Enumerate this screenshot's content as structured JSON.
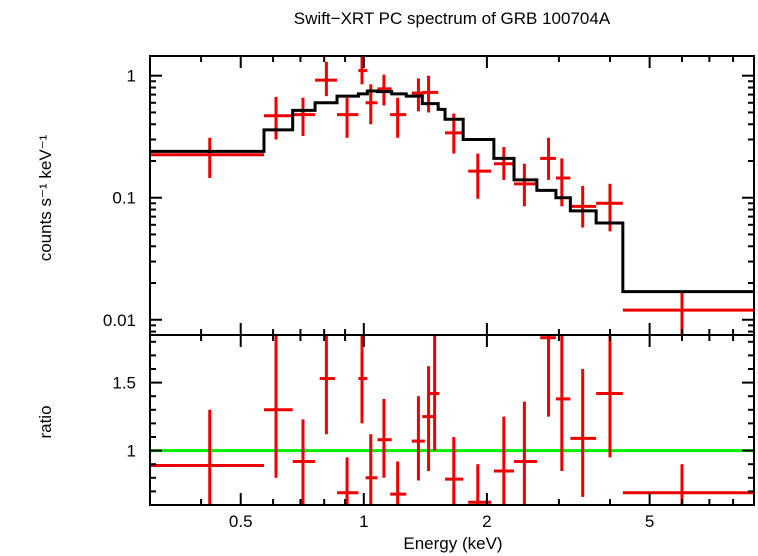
{
  "chart_data": {
    "type": "scatter",
    "title": "Swift−XRT PC spectrum of GRB 100704A",
    "xlabel": "Energy (keV)",
    "xscale": "log",
    "xlim": [
      0.3,
      9.0
    ],
    "x_tick_labels": [
      "0.5",
      "1",
      "2",
      "5"
    ],
    "x_ticks": [
      0.5,
      1,
      2,
      5
    ],
    "panels": [
      {
        "name": "spectrum",
        "ylabel": "counts s⁻¹ keV⁻¹",
        "yscale": "log",
        "ylim": [
          0.0075,
          1.45
        ],
        "y_tick_labels": [
          "1",
          "0.1",
          "0.01"
        ],
        "y_ticks": [
          1,
          0.1,
          0.01
        ],
        "data": [
          {
            "x": 0.42,
            "xlo": 0.3,
            "xhi": 0.57,
            "y": 0.225,
            "ylo": 0.145,
            "yhi": 0.31
          },
          {
            "x": 0.61,
            "xlo": 0.57,
            "xhi": 0.67,
            "y": 0.47,
            "ylo": 0.3,
            "yhi": 0.67
          },
          {
            "x": 0.71,
            "xlo": 0.67,
            "xhi": 0.76,
            "y": 0.48,
            "ylo": 0.32,
            "yhi": 0.66
          },
          {
            "x": 0.81,
            "xlo": 0.76,
            "xhi": 0.86,
            "y": 0.92,
            "ylo": 0.68,
            "yhi": 1.3
          },
          {
            "x": 0.91,
            "xlo": 0.86,
            "xhi": 0.97,
            "y": 0.48,
            "ylo": 0.31,
            "yhi": 0.66
          },
          {
            "x": 0.99,
            "xlo": 0.97,
            "xhi": 1.02,
            "y": 1.1,
            "ylo": 0.85,
            "yhi": 1.45
          },
          {
            "x": 1.04,
            "xlo": 1.01,
            "xhi": 1.08,
            "y": 0.6,
            "ylo": 0.4,
            "yhi": 0.85
          },
          {
            "x": 1.12,
            "xlo": 1.08,
            "xhi": 1.17,
            "y": 0.78,
            "ylo": 0.57,
            "yhi": 1.02
          },
          {
            "x": 1.21,
            "xlo": 1.16,
            "xhi": 1.27,
            "y": 0.48,
            "ylo": 0.31,
            "yhi": 0.66
          },
          {
            "x": 1.36,
            "xlo": 1.31,
            "xhi": 1.41,
            "y": 0.72,
            "ylo": 0.51,
            "yhi": 0.95
          },
          {
            "x": 1.44,
            "xlo": 1.39,
            "xhi": 1.52,
            "y": 0.73,
            "ylo": 0.5,
            "yhi": 1.0
          },
          {
            "x": 1.66,
            "xlo": 1.58,
            "xhi": 1.75,
            "y": 0.34,
            "ylo": 0.23,
            "yhi": 0.49
          },
          {
            "x": 1.9,
            "xlo": 1.8,
            "xhi": 2.05,
            "y": 0.165,
            "ylo": 0.098,
            "yhi": 0.23
          },
          {
            "x": 2.2,
            "xlo": 2.08,
            "xhi": 2.33,
            "y": 0.19,
            "ylo": 0.14,
            "yhi": 0.26
          },
          {
            "x": 2.47,
            "xlo": 2.33,
            "xhi": 2.65,
            "y": 0.13,
            "ylo": 0.085,
            "yhi": 0.19
          },
          {
            "x": 2.83,
            "xlo": 2.7,
            "xhi": 2.95,
            "y": 0.21,
            "ylo": 0.14,
            "yhi": 0.31
          },
          {
            "x": 3.05,
            "xlo": 2.95,
            "xhi": 3.2,
            "y": 0.145,
            "ylo": 0.085,
            "yhi": 0.21
          },
          {
            "x": 3.43,
            "xlo": 3.2,
            "xhi": 3.7,
            "y": 0.085,
            "ylo": 0.057,
            "yhi": 0.125
          },
          {
            "x": 4.0,
            "xlo": 3.7,
            "xhi": 4.3,
            "y": 0.09,
            "ylo": 0.053,
            "yhi": 0.13
          },
          {
            "x": 6.0,
            "xlo": 4.3,
            "xhi": 9.0,
            "y": 0.012,
            "ylo": 0.0075,
            "yhi": 0.017
          }
        ],
        "model_steps": [
          {
            "xlo": 0.3,
            "xhi": 0.57,
            "y": 0.24
          },
          {
            "xlo": 0.57,
            "xhi": 0.67,
            "y": 0.36
          },
          {
            "xlo": 0.67,
            "xhi": 0.76,
            "y": 0.52
          },
          {
            "xlo": 0.76,
            "xhi": 0.86,
            "y": 0.6
          },
          {
            "xlo": 0.86,
            "xhi": 0.97,
            "y": 0.68
          },
          {
            "xlo": 0.97,
            "xhi": 1.02,
            "y": 0.71
          },
          {
            "xlo": 1.02,
            "xhi": 1.08,
            "y": 0.75
          },
          {
            "xlo": 1.08,
            "xhi": 1.17,
            "y": 0.74
          },
          {
            "xlo": 1.17,
            "xhi": 1.27,
            "y": 0.71
          },
          {
            "xlo": 1.27,
            "xhi": 1.39,
            "y": 0.68
          },
          {
            "xlo": 1.39,
            "xhi": 1.52,
            "y": 0.59
          },
          {
            "xlo": 1.52,
            "xhi": 1.58,
            "y": 0.53
          },
          {
            "xlo": 1.58,
            "xhi": 1.75,
            "y": 0.44
          },
          {
            "xlo": 1.75,
            "xhi": 2.08,
            "y": 0.3
          },
          {
            "xlo": 2.08,
            "xhi": 2.33,
            "y": 0.21
          },
          {
            "xlo": 2.33,
            "xhi": 2.65,
            "y": 0.14
          },
          {
            "xlo": 2.65,
            "xhi": 2.95,
            "y": 0.115
          },
          {
            "xlo": 2.95,
            "xhi": 3.2,
            "y": 0.1
          },
          {
            "xlo": 3.2,
            "xhi": 3.7,
            "y": 0.078
          },
          {
            "xlo": 3.7,
            "xhi": 4.3,
            "y": 0.062
          },
          {
            "xlo": 4.3,
            "xhi": 9.0,
            "y": 0.017
          }
        ]
      },
      {
        "name": "ratio",
        "ylabel": "ratio",
        "yscale": "linear",
        "ylim": [
          0.6,
          1.85
        ],
        "y_tick_labels": [
          "1",
          "1.5"
        ],
        "y_ticks": [
          1,
          1.5
        ],
        "reference_line": 1,
        "data": [
          {
            "x": 0.42,
            "xlo": 0.3,
            "xhi": 0.57,
            "y": 0.89,
            "ylo": 0.6,
            "yhi": 1.3
          },
          {
            "x": 0.61,
            "xlo": 0.57,
            "xhi": 0.67,
            "y": 1.3,
            "ylo": 0.8,
            "yhi": 1.85
          },
          {
            "x": 0.71,
            "xlo": 0.67,
            "xhi": 0.76,
            "y": 0.92,
            "ylo": 0.6,
            "yhi": 1.23
          },
          {
            "x": 0.81,
            "xlo": 0.78,
            "xhi": 0.85,
            "y": 1.53,
            "ylo": 1.12,
            "yhi": 1.85
          },
          {
            "x": 0.91,
            "xlo": 0.86,
            "xhi": 0.97,
            "y": 0.69,
            "ylo": 0.6,
            "yhi": 0.95
          },
          {
            "x": 0.99,
            "xlo": 0.97,
            "xhi": 1.02,
            "y": 1.53,
            "ylo": 1.2,
            "yhi": 1.85
          },
          {
            "x": 1.04,
            "xlo": 1.01,
            "xhi": 1.08,
            "y": 0.8,
            "ylo": 0.6,
            "yhi": 1.12
          },
          {
            "x": 1.12,
            "xlo": 1.08,
            "xhi": 1.17,
            "y": 1.08,
            "ylo": 0.8,
            "yhi": 1.38
          },
          {
            "x": 1.21,
            "xlo": 1.16,
            "xhi": 1.27,
            "y": 0.68,
            "ylo": 0.6,
            "yhi": 0.92
          },
          {
            "x": 1.36,
            "xlo": 1.31,
            "xhi": 1.41,
            "y": 1.07,
            "ylo": 0.78,
            "yhi": 1.4
          },
          {
            "x": 1.44,
            "xlo": 1.39,
            "xhi": 1.5,
            "y": 1.25,
            "ylo": 0.85,
            "yhi": 1.62
          },
          {
            "x": 1.49,
            "xlo": 1.45,
            "xhi": 1.53,
            "y": 1.42,
            "ylo": 1.0,
            "yhi": 1.85
          },
          {
            "x": 1.66,
            "xlo": 1.58,
            "xhi": 1.75,
            "y": 0.79,
            "ylo": 0.6,
            "yhi": 1.1
          },
          {
            "x": 1.9,
            "xlo": 1.8,
            "xhi": 2.05,
            "y": 0.62,
            "ylo": 0.6,
            "yhi": 0.9
          },
          {
            "x": 2.2,
            "xlo": 2.08,
            "xhi": 2.33,
            "y": 0.85,
            "ylo": 0.6,
            "yhi": 1.25
          },
          {
            "x": 2.47,
            "xlo": 2.33,
            "xhi": 2.65,
            "y": 0.92,
            "ylo": 0.6,
            "yhi": 1.36
          },
          {
            "x": 2.83,
            "xlo": 2.7,
            "xhi": 2.95,
            "y": 1.83,
            "ylo": 1.25,
            "yhi": 1.85
          },
          {
            "x": 3.05,
            "xlo": 2.95,
            "xhi": 3.2,
            "y": 1.38,
            "ylo": 0.85,
            "yhi": 1.85
          },
          {
            "x": 3.43,
            "xlo": 3.2,
            "xhi": 3.7,
            "y": 1.09,
            "ylo": 0.66,
            "yhi": 1.6
          },
          {
            "x": 4.0,
            "xlo": 3.7,
            "xhi": 4.3,
            "y": 1.42,
            "ylo": 0.95,
            "yhi": 1.85
          },
          {
            "x": 6.0,
            "xlo": 4.3,
            "xhi": 9.0,
            "y": 0.69,
            "ylo": 0.6,
            "yhi": 0.9
          }
        ]
      }
    ],
    "colors": {
      "data": "#ee0000",
      "model": "#000000",
      "reference_line": "#00ee00",
      "axes": "#000000"
    }
  }
}
